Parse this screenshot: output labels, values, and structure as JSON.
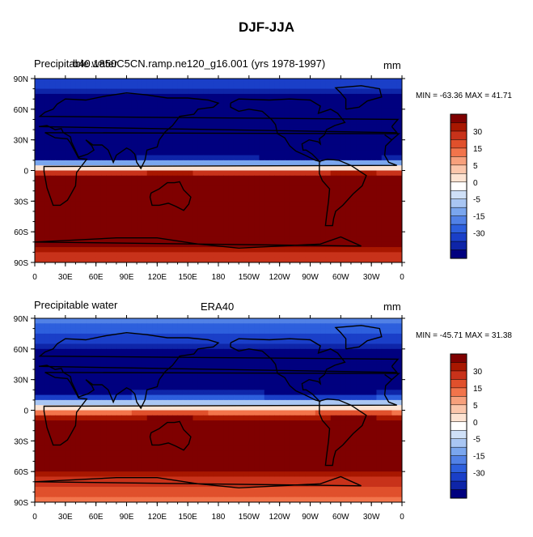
{
  "title": "DJF-JJA",
  "chart_data": [
    {
      "type": "heatmap",
      "left_label": "Precipitable water",
      "center_label": "b40.1850C5CN.ramp.ne120_g16.001 (yrs 1978-1997)",
      "units": "mm",
      "stats": "MIN = -63.36 MAX =  41.71",
      "min": -63.36,
      "max": 41.71,
      "x_ticks": [
        "0",
        "30E",
        "60E",
        "90E",
        "120E",
        "150E",
        "180",
        "150W",
        "120W",
        "90W",
        "60W",
        "30W",
        "0"
      ],
      "y_ticks": [
        "90N",
        "60N",
        "30N",
        "0",
        "30S",
        "60S",
        "90S"
      ],
      "colorbar_labels": [
        "30",
        "15",
        "5",
        "0",
        "-5",
        "-15",
        "-30"
      ]
    },
    {
      "type": "heatmap",
      "left_label": "Precipitable water",
      "center_label": "ERA40",
      "units": "mm",
      "stats": "MIN = -45.71 MAX =  31.38",
      "min": -45.71,
      "max": 31.38,
      "x_ticks": [
        "0",
        "30E",
        "60E",
        "90E",
        "120E",
        "150E",
        "180",
        "150W",
        "120W",
        "90W",
        "60W",
        "30W",
        "0"
      ],
      "y_ticks": [
        "90N",
        "60N",
        "30N",
        "0",
        "30S",
        "60S",
        "90S"
      ],
      "colorbar_labels": [
        "30",
        "15",
        "5",
        "0",
        "-5",
        "-15",
        "-30"
      ]
    }
  ],
  "colors": {
    "scale": [
      "#7f0000",
      "#a81700",
      "#c8321a",
      "#e0502c",
      "#f2744b",
      "#f7a07c",
      "#fbc6ab",
      "#fde3d2",
      "#ffffff",
      "#cfe0f7",
      "#a9c6f3",
      "#7aa6ee",
      "#5181e6",
      "#2d5fdd",
      "#1a3fc8",
      "#0e25a8",
      "#00007f"
    ]
  }
}
